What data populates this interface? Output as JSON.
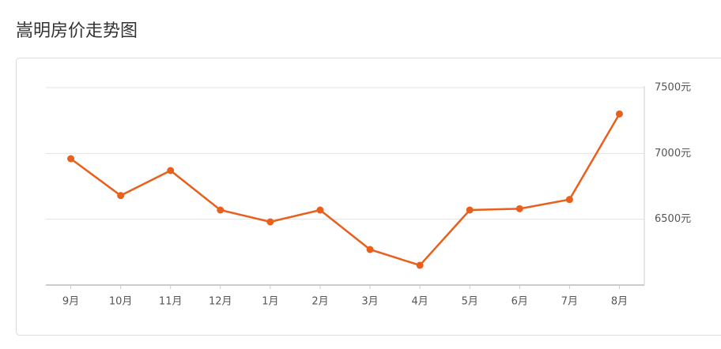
{
  "chart_data": {
    "type": "line",
    "title": "嵩明房价走势图",
    "categories": [
      "9月",
      "10月",
      "11月",
      "12月",
      "1月",
      "2月",
      "3月",
      "4月",
      "5月",
      "6月",
      "7月",
      "8月"
    ],
    "series": [
      {
        "color": "#e8601c",
        "values": [
          6960,
          6680,
          6870,
          6570,
          6480,
          6570,
          6270,
          6150,
          6570,
          6580,
          6650,
          7300
        ]
      }
    ],
    "ylim": [
      6000,
      7500
    ],
    "yticks": [
      {
        "value": 6500,
        "label": "6500元"
      },
      {
        "value": 7000,
        "label": "7000元"
      },
      {
        "value": 7500,
        "label": "7500元"
      }
    ],
    "grid": true
  }
}
